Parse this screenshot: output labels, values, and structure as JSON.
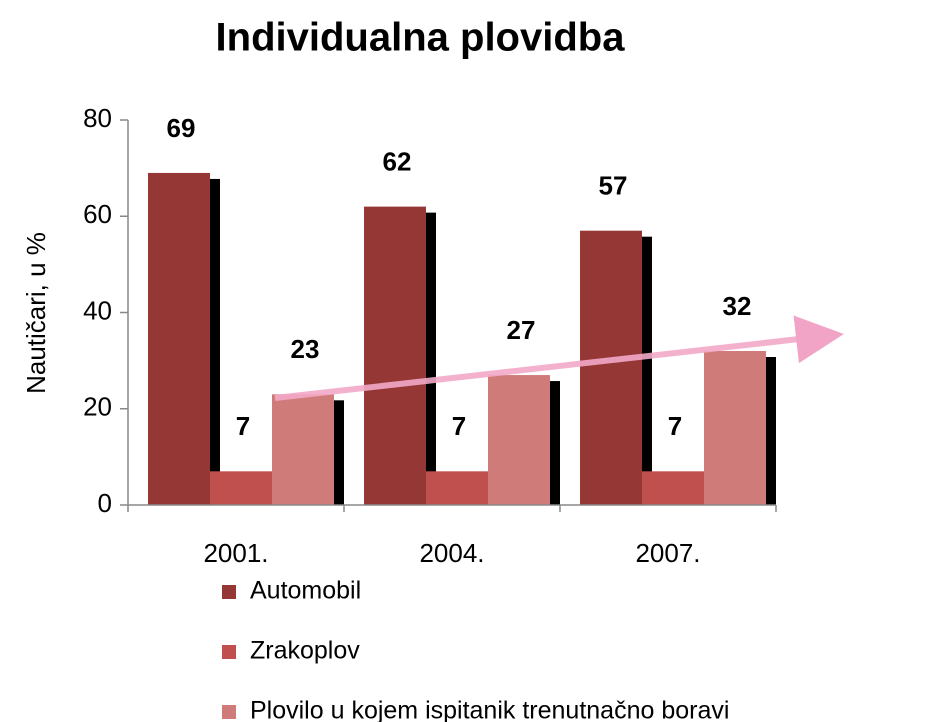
{
  "chart_data": {
    "type": "bar",
    "title": "Individualna plovidba",
    "y_label": "Nautičari, u %",
    "categories": [
      "2001.",
      "2004.",
      "2007."
    ],
    "series": [
      {
        "name": "Automobil",
        "color": "#953735",
        "values": [
          69,
          62,
          57
        ]
      },
      {
        "name": "Zrakoplov",
        "color": "#c0504d",
        "values": [
          7,
          7,
          7
        ]
      },
      {
        "name": "Plovilo u kojem ispitanik trenutnačno boravi",
        "color": "#cf7b79",
        "values": [
          23,
          27,
          32
        ]
      }
    ],
    "ylim": [
      0,
      80
    ],
    "yticks": [
      0,
      20,
      40,
      60,
      80
    ],
    "grid": false,
    "legend": "bottom"
  }
}
